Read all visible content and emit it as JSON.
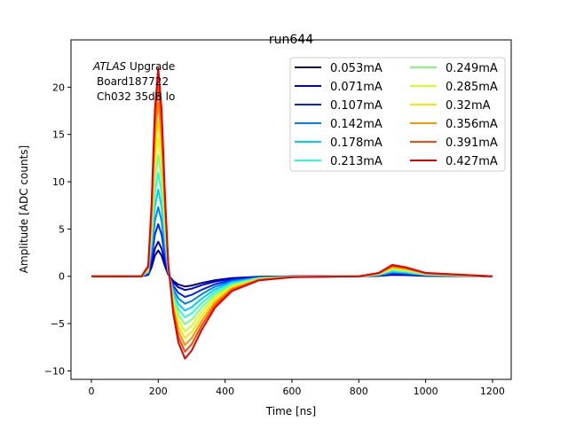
{
  "chart_data": {
    "type": "line",
    "title": "run644",
    "xlabel": "Time [ns]",
    "ylabel": "Amplitude [ADC counts]",
    "xlim": [
      -61,
      1256
    ],
    "ylim": [
      -10.9,
      25.0
    ],
    "xticks": [
      0,
      200,
      400,
      600,
      800,
      1000,
      1200
    ],
    "yticks": [
      -10,
      -5,
      0,
      5,
      10,
      15,
      20
    ],
    "grid": false,
    "legend_placement": "upper-right",
    "legend_columns": 2,
    "annotation": {
      "italic": "ATLAS",
      "line1": " Upgrade",
      "line2": "Board187722",
      "line3": "Ch032 35dB lo"
    },
    "x": [
      0,
      150,
      170,
      180,
      190,
      200,
      210,
      220,
      230,
      245,
      260,
      280,
      300,
      330,
      370,
      420,
      500,
      600,
      800,
      860,
      900,
      940,
      1000,
      1200
    ],
    "series": [
      {
        "name": "0.053mA",
        "color": "#000080",
        "values": [
          0,
          0,
          0.14,
          0.96,
          2.18,
          2.73,
          2.18,
          1.09,
          0.16,
          -0.49,
          -0.86,
          -1.08,
          -0.97,
          -0.7,
          -0.41,
          -0.19,
          -0.05,
          -0.01,
          0,
          0.05,
          0.15,
          0.12,
          0.05,
          0
        ]
      },
      {
        "name": "0.071mA",
        "color": "#0000d6",
        "values": [
          0,
          0,
          0.18,
          1.28,
          2.93,
          3.66,
          2.93,
          1.46,
          0.22,
          -0.65,
          -1.16,
          -1.45,
          -1.31,
          -0.94,
          -0.55,
          -0.26,
          -0.07,
          -0.01,
          0,
          0.06,
          0.2,
          0.16,
          0.06,
          0
        ]
      },
      {
        "name": "0.107mA",
        "color": "#0022ff",
        "values": [
          0,
          0,
          0.28,
          1.93,
          4.41,
          5.51,
          4.41,
          2.2,
          0.33,
          -0.98,
          -1.74,
          -2.18,
          -1.96,
          -1.42,
          -0.83,
          -0.39,
          -0.11,
          -0.02,
          0,
          0.09,
          0.3,
          0.24,
          0.09,
          0
        ]
      },
      {
        "name": "0.142mA",
        "color": "#0080ff",
        "values": [
          0,
          0,
          0.37,
          2.56,
          5.85,
          7.31,
          5.85,
          2.92,
          0.44,
          -1.31,
          -2.32,
          -2.9,
          -2.61,
          -1.89,
          -1.1,
          -0.52,
          -0.15,
          -0.03,
          0,
          0.12,
          0.4,
          0.32,
          0.12,
          0
        ]
      },
      {
        "name": "0.178mA",
        "color": "#00ccff",
        "values": [
          0,
          0,
          0.46,
          3.21,
          7.34,
          9.17,
          7.34,
          3.67,
          0.56,
          -1.63,
          -2.9,
          -3.63,
          -3.27,
          -2.36,
          -1.38,
          -0.65,
          -0.18,
          -0.04,
          0,
          0.15,
          0.5,
          0.4,
          0.15,
          0
        ]
      },
      {
        "name": "0.213mA",
        "color": "#29ffce",
        "values": [
          0,
          0,
          0.55,
          3.84,
          8.78,
          10.97,
          8.78,
          4.39,
          0.66,
          -1.96,
          -3.48,
          -4.35,
          -3.92,
          -2.83,
          -1.65,
          -0.78,
          -0.22,
          -0.04,
          0,
          0.18,
          0.6,
          0.48,
          0.18,
          0
        ]
      },
      {
        "name": "0.249mA",
        "color": "#7dff7a",
        "values": [
          0,
          0,
          0.64,
          4.49,
          10.26,
          12.82,
          10.26,
          5.13,
          0.77,
          -2.29,
          -4.06,
          -5.08,
          -4.57,
          -3.3,
          -1.93,
          -0.91,
          -0.25,
          -0.05,
          0,
          0.21,
          0.7,
          0.56,
          0.21,
          0
        ]
      },
      {
        "name": "0.285mA",
        "color": "#ceff29",
        "values": [
          0,
          0,
          0.73,
          5.14,
          11.74,
          14.68,
          11.74,
          5.87,
          0.89,
          -2.61,
          -4.65,
          -5.81,
          -5.23,
          -3.78,
          -2.21,
          -1.05,
          -0.29,
          -0.06,
          0,
          0.24,
          0.8,
          0.64,
          0.24,
          0
        ]
      },
      {
        "name": "0.32mA",
        "color": "#ffe500",
        "values": [
          0,
          0,
          0.82,
          5.77,
          13.18,
          16.48,
          13.18,
          6.59,
          1.0,
          -2.94,
          -5.22,
          -6.53,
          -5.88,
          -4.24,
          -2.48,
          -1.18,
          -0.33,
          -0.07,
          0,
          0.27,
          0.9,
          0.72,
          0.27,
          0
        ]
      },
      {
        "name": "0.356mA",
        "color": "#ff9400",
        "values": [
          0,
          0,
          0.92,
          6.42,
          14.66,
          18.33,
          14.66,
          7.33,
          1.1,
          -3.27,
          -5.81,
          -7.26,
          -6.53,
          -4.72,
          -2.76,
          -1.31,
          -0.36,
          -0.07,
          0,
          0.3,
          1.0,
          0.8,
          0.3,
          0
        ]
      },
      {
        "name": "0.391mA",
        "color": "#ff4800",
        "values": [
          0,
          0,
          1.01,
          7.05,
          16.11,
          20.14,
          16.11,
          8.06,
          1.21,
          -3.59,
          -6.38,
          -7.98,
          -7.18,
          -5.19,
          -3.03,
          -1.44,
          -0.4,
          -0.08,
          0,
          0.33,
          1.1,
          0.88,
          0.33,
          0
        ]
      },
      {
        "name": "0.427mA",
        "color": "#e40000",
        "values": [
          0,
          0,
          1.1,
          7.7,
          17.6,
          22.0,
          17.6,
          8.8,
          1.33,
          -3.92,
          -6.97,
          -8.71,
          -7.84,
          -5.66,
          -3.31,
          -1.57,
          -0.44,
          -0.09,
          0,
          0.36,
          1.2,
          0.96,
          0.36,
          0
        ]
      }
    ]
  }
}
